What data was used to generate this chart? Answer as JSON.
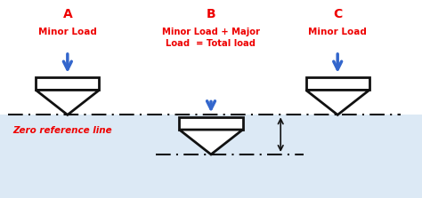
{
  "bg_color": "#dce9f5",
  "white": "#ffffff",
  "black": "#111111",
  "red": "#ee0000",
  "blue": "#3366cc",
  "label_A": "A",
  "label_B": "B",
  "label_C": "C",
  "text_A": "Minor Load",
  "text_B": "Minor Load + Major\nLoad  = Total load",
  "text_C": "Minor Load",
  "zero_ref_text": "Zero reference line",
  "fig_width": 4.74,
  "fig_height": 2.23,
  "dpi": 100
}
